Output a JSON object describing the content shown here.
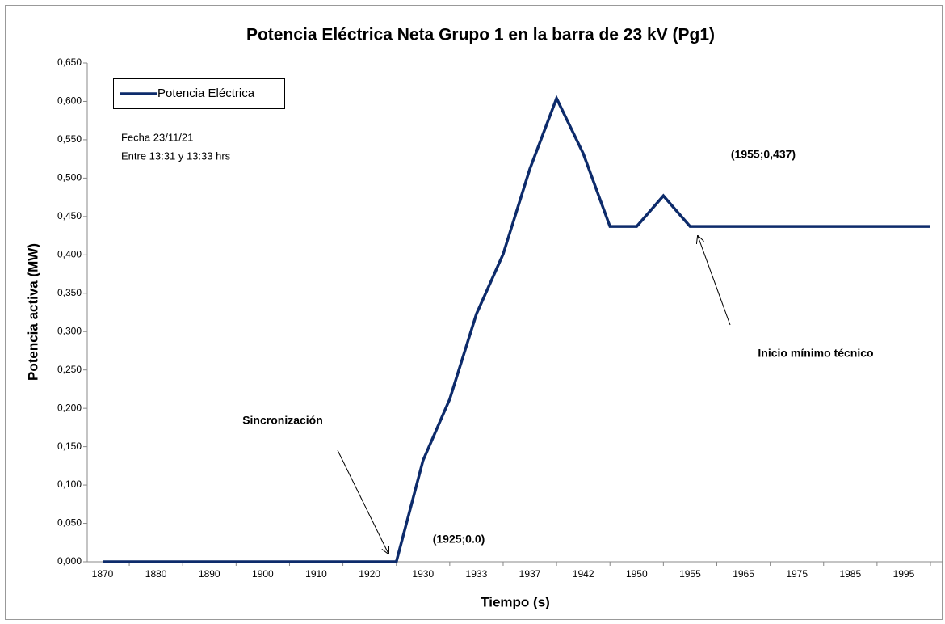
{
  "chart_data": {
    "type": "line",
    "title": "Potencia Eléctrica Neta Grupo 1 en la barra de 23 kV (Pg1)",
    "x_label": "Tiempo (s)",
    "y_label": "Potencia activa (MW)",
    "categories": [
      "1870",
      null,
      "1880",
      null,
      "1890",
      null,
      "1900",
      null,
      "1910",
      null,
      "1920",
      null,
      "1930",
      null,
      "1933",
      null,
      "1937",
      null,
      "1942",
      null,
      "1950",
      null,
      "1955",
      null,
      "1965",
      null,
      "1975",
      null,
      "1985",
      null,
      "1995",
      null
    ],
    "series": [
      {
        "name": "Potencia Eléctrica",
        "color": "#0d2b6b",
        "values": [
          0,
          0,
          0,
          0,
          0,
          0,
          0,
          0,
          0,
          0,
          0,
          0,
          0.132,
          0.212,
          0.323,
          0.401,
          0.512,
          0.604,
          0.532,
          0.437,
          0.437,
          0.477,
          0.437,
          0.437,
          0.437,
          0.437,
          0.437,
          0.437,
          0.437,
          0.437,
          0.437,
          0.437
        ]
      }
    ],
    "ylim": [
      0,
      0.65
    ],
    "yticks": [
      {
        "value": 0,
        "label": "0,000"
      },
      {
        "value": 0.05,
        "label": "0,050"
      },
      {
        "value": 0.1,
        "label": "0,100"
      },
      {
        "value": 0.15,
        "label": "0,150"
      },
      {
        "value": 0.2,
        "label": "0,200"
      },
      {
        "value": 0.25,
        "label": "0,250"
      },
      {
        "value": 0.3,
        "label": "0,300"
      },
      {
        "value": 0.35,
        "label": "0,350"
      },
      {
        "value": 0.4,
        "label": "0,400"
      },
      {
        "value": 0.45,
        "label": "0,450"
      },
      {
        "value": 0.5,
        "label": "0,500"
      },
      {
        "value": 0.55,
        "label": "0,550"
      },
      {
        "value": 0.6,
        "label": "0,600"
      },
      {
        "value": 0.65,
        "label": "0,650"
      }
    ],
    "grid": false,
    "legend": "top-left",
    "annotations": [
      "Fecha 23/11/21",
      "Entre 13:31 y 13:33 hrs",
      "(1955;0,437)",
      "Inicio  mínimo técnico",
      "Sincronización",
      "(1925;0.0)"
    ]
  }
}
